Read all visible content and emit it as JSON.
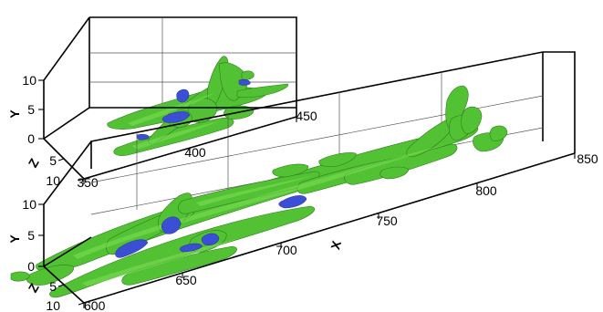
{
  "chart_data": [
    {
      "type": "3d-isosurface",
      "title": "",
      "xlabel": "",
      "ylabel": "Y",
      "zlabel": "Z",
      "xlim": [
        350,
        450
      ],
      "ylim": [
        0,
        10
      ],
      "zlim": [
        0,
        10
      ],
      "x_ticks": [
        "350",
        "400",
        "450"
      ],
      "y_ticks": [
        "0",
        "5",
        "10"
      ],
      "z_ticks": [
        "5",
        "10"
      ],
      "surface_colors": {
        "outer": "#52c234",
        "inner": "#3b4fd4"
      }
    },
    {
      "type": "3d-isosurface",
      "title": "",
      "xlabel": "X",
      "ylabel": "Y",
      "zlabel": "Z",
      "xlim": [
        600,
        850
      ],
      "ylim": [
        0,
        10
      ],
      "zlim": [
        0,
        10
      ],
      "x_ticks": [
        "600",
        "650",
        "700",
        "750",
        "800",
        "850"
      ],
      "y_ticks": [
        "0",
        "5",
        "10"
      ],
      "z_ticks": [
        "5",
        "10"
      ],
      "surface_colors": {
        "outer": "#52c234",
        "inner": "#3b4fd4"
      }
    }
  ]
}
